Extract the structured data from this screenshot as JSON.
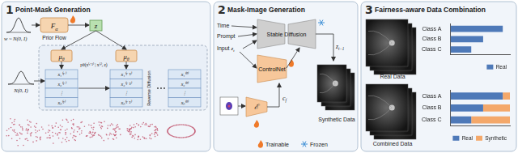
{
  "diagram": {
    "panel1": {
      "number": "1",
      "title": "Point-Mask Generation",
      "prior_noise": "w ~ N(0, I)",
      "prior_flow": {
        "base": "F",
        "sub": "α"
      },
      "prior_flow_label": "Prior Flow",
      "latent": "z",
      "mean_net": {
        "base": "μ",
        "sub": "θ"
      },
      "noise": "N(0, I)",
      "transition": "pθ(x⁽ᵗ⁻¹⁾ | x⁽ᵗ⁾, z)",
      "stage_label": "Reverse Diffusion",
      "stacks": [
        [
          "x₁⁽ᵀ⁾",
          "x₂⁽ᵀ⁾",
          "⋮",
          "xₙ⁽ᵀ⁾"
        ],
        [
          "x₁⁽ᵀ⁻¹⁾",
          "x₂⁽ᵀ⁻¹⁾",
          "⋮",
          "xₙ⁽ᵀ⁻¹⁾"
        ],
        [
          "x₁⁽⁰⁾",
          "x₂⁽⁰⁾",
          "⋮",
          "xₙ⁽⁰⁾"
        ]
      ]
    },
    "panel2": {
      "number": "2",
      "title": "Mask-Image Generation",
      "inputs": [
        "Time",
        "Prompt"
      ],
      "input_latent": {
        "prefix": "Input ",
        "base": "z",
        "sub": "t"
      },
      "frozen_model": "Stable Diffusion",
      "control_model": "ControlNet",
      "encoder": "ℰ",
      "condition": {
        "base": "c",
        "sub": "f"
      },
      "output_latent": {
        "base": "z",
        "sub": "t−1"
      },
      "output_label": "Synthetic Data",
      "legend": {
        "trainable": "Trainable",
        "frozen": "Frozen"
      }
    },
    "panel3": {
      "number": "3",
      "title": "Fairness-aware Data Combination",
      "real_label": "Real Data",
      "combined_label": "Combined Data"
    }
  },
  "chart_data": [
    {
      "type": "bar",
      "orientation": "horizontal",
      "stacked": true,
      "categories": [
        "Class A",
        "Class B",
        "Class C"
      ],
      "series": [
        {
          "name": "Real",
          "color": "#4e79b8",
          "values": [
            88,
            55,
            35
          ]
        }
      ],
      "xlim": [
        0,
        100
      ],
      "tick_labels": "y",
      "grid": false,
      "legend": "lower right"
    },
    {
      "type": "bar",
      "orientation": "horizontal",
      "stacked": true,
      "categories": [
        "Class A",
        "Class B",
        "Class C"
      ],
      "series": [
        {
          "name": "Real",
          "color": "#4e79b8",
          "values": [
            88,
            55,
            35
          ]
        },
        {
          "name": "Synthetic",
          "color": "#f4a86a",
          "values": [
            12,
            45,
            65
          ]
        }
      ],
      "xlim": [
        0,
        100
      ],
      "tick_labels": "y",
      "grid": false,
      "legend": "lower right"
    }
  ]
}
